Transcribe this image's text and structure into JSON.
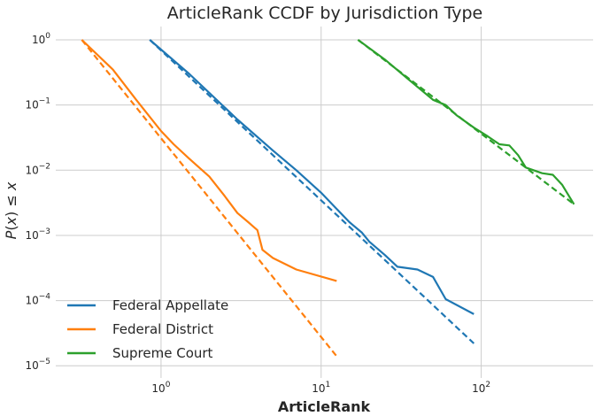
{
  "chart_data": {
    "type": "line",
    "title": "ArticleRank CCDF by Jurisdiction Type",
    "xlabel": "ArticleRank",
    "ylabel": "P(x) ≤ x",
    "x_scale": "log",
    "y_scale": "log",
    "xlim": [
      0.22,
      500
    ],
    "ylim": [
      6.5e-06,
      1.6
    ],
    "x_ticks": [
      {
        "value": 1,
        "base": "10",
        "exp": "0"
      },
      {
        "value": 10,
        "base": "10",
        "exp": "1"
      },
      {
        "value": 100,
        "base": "10",
        "exp": "2"
      }
    ],
    "y_ticks": [
      {
        "value": 1,
        "base": "10",
        "exp": "0"
      },
      {
        "value": 0.1,
        "base": "10",
        "exp": "−1"
      },
      {
        "value": 0.01,
        "base": "10",
        "exp": "−2"
      },
      {
        "value": 0.001,
        "base": "10",
        "exp": "−3"
      },
      {
        "value": 0.0001,
        "base": "10",
        "exp": "−4"
      },
      {
        "value": 1e-05,
        "base": "10",
        "exp": "−5"
      }
    ],
    "grid": true,
    "legend_position": "bottom-left",
    "series": [
      {
        "name": "Federal Appellate",
        "color": "#1f77b4",
        "empirical": [
          [
            0.85,
            1.0
          ],
          [
            1.5,
            0.3
          ],
          [
            3.0,
            0.06
          ],
          [
            5.0,
            0.02
          ],
          [
            7.0,
            0.01
          ],
          [
            10.0,
            0.0045
          ],
          [
            15.0,
            0.0016
          ],
          [
            18.0,
            0.0011
          ],
          [
            20.0,
            0.0008
          ],
          [
            25.0,
            0.0005
          ],
          [
            30.0,
            0.00033
          ],
          [
            40.0,
            0.0003
          ],
          [
            50.0,
            0.00023
          ],
          [
            60.0,
            0.000105
          ],
          [
            90.0,
            6.2e-05
          ]
        ],
        "fit": [
          [
            0.85,
            1.0
          ],
          [
            90.0,
            2.2e-05
          ]
        ]
      },
      {
        "name": "Federal District",
        "color": "#ff7f0e",
        "empirical": [
          [
            0.32,
            1.0
          ],
          [
            0.5,
            0.35
          ],
          [
            0.7,
            0.12
          ],
          [
            1.0,
            0.04
          ],
          [
            1.2,
            0.025
          ],
          [
            1.5,
            0.015
          ],
          [
            2.0,
            0.008
          ],
          [
            2.5,
            0.004
          ],
          [
            3.0,
            0.0022
          ],
          [
            3.5,
            0.0016
          ],
          [
            4.0,
            0.0012
          ],
          [
            4.3,
            0.0006
          ],
          [
            5.0,
            0.00045
          ],
          [
            7.0,
            0.0003
          ],
          [
            12.5,
            0.0002
          ]
        ],
        "fit": [
          [
            0.32,
            1.0
          ],
          [
            12.5,
            1.4e-05
          ]
        ]
      },
      {
        "name": "Supreme Court",
        "color": "#2ca02c",
        "empirical": [
          [
            17.0,
            1.0
          ],
          [
            25.0,
            0.5
          ],
          [
            35.0,
            0.25
          ],
          [
            50.0,
            0.12
          ],
          [
            60.0,
            0.1
          ],
          [
            70.0,
            0.07
          ],
          [
            90.0,
            0.045
          ],
          [
            110.0,
            0.033
          ],
          [
            130.0,
            0.025
          ],
          [
            150.0,
            0.024
          ],
          [
            170.0,
            0.017
          ],
          [
            190.0,
            0.011
          ],
          [
            240.0,
            0.009
          ],
          [
            280.0,
            0.0085
          ],
          [
            320.0,
            0.006
          ],
          [
            380.0,
            0.003
          ]
        ],
        "fit": [
          [
            17.0,
            1.0
          ],
          [
            380.0,
            0.003
          ]
        ]
      }
    ]
  }
}
